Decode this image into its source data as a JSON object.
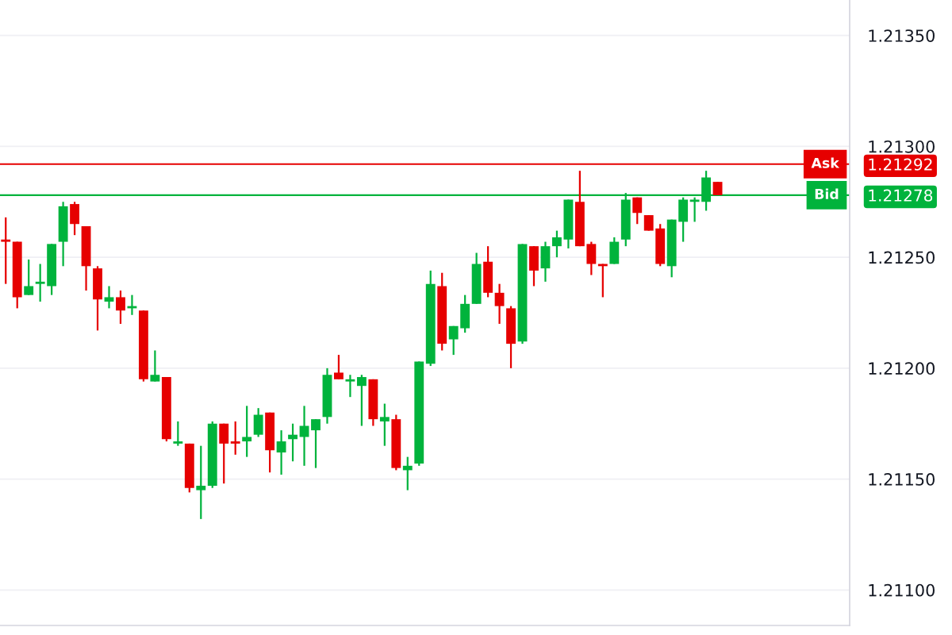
{
  "chart_data": {
    "type": "candlestick",
    "categories": [
      null,
      null,
      null,
      null,
      null,
      null,
      null,
      null,
      null,
      null,
      null,
      null,
      null,
      null,
      null,
      null,
      null,
      null,
      null,
      null,
      null,
      null,
      null,
      null,
      null,
      null,
      null,
      null,
      null,
      null,
      null,
      null,
      null,
      null,
      null,
      null,
      null,
      null,
      null,
      null,
      null,
      null,
      null,
      null,
      null,
      null,
      null,
      null,
      null,
      null,
      null,
      null,
      null,
      null,
      null,
      null,
      null,
      null,
      null,
      null,
      null,
      null,
      null,
      null,
      null,
      null,
      null,
      null,
      null,
      null,
      null,
      null,
      null,
      null
    ],
    "ohlc": [
      [
        1.21258,
        1.21268,
        1.21238,
        1.21257
      ],
      [
        1.21257,
        1.21257,
        1.21227,
        1.21232
      ],
      [
        1.21233,
        1.21249,
        1.21233,
        1.21237
      ],
      [
        1.21238,
        1.21247,
        1.2123,
        1.21239
      ],
      [
        1.21237,
        1.21256,
        1.21233,
        1.21256
      ],
      [
        1.21257,
        1.21275,
        1.21246,
        1.21273
      ],
      [
        1.21274,
        1.21275,
        1.2126,
        1.21265
      ],
      [
        1.21264,
        1.21264,
        1.21235,
        1.21246
      ],
      [
        1.21245,
        1.21246,
        1.21217,
        1.21231
      ],
      [
        1.2123,
        1.21237,
        1.21227,
        1.21232
      ],
      [
        1.21232,
        1.21235,
        1.2122,
        1.21226
      ],
      [
        1.21227,
        1.21233,
        1.21224,
        1.21228
      ],
      [
        1.21226,
        1.21226,
        1.21194,
        1.21195
      ],
      [
        1.21194,
        1.21208,
        1.21194,
        1.21197
      ],
      [
        1.21196,
        1.21196,
        1.21167,
        1.21168
      ],
      [
        1.21166,
        1.21176,
        1.21165,
        1.21167
      ],
      [
        1.21166,
        1.21166,
        1.21144,
        1.21146
      ],
      [
        1.21145,
        1.21165,
        1.21132,
        1.21147
      ],
      [
        1.21147,
        1.21176,
        1.21146,
        1.21175
      ],
      [
        1.21175,
        1.21175,
        1.21148,
        1.21166
      ],
      [
        1.21167,
        1.21176,
        1.21161,
        1.21166
      ],
      [
        1.21167,
        1.21183,
        1.2116,
        1.21169
      ],
      [
        1.2117,
        1.21182,
        1.21169,
        1.21179
      ],
      [
        1.2118,
        1.2118,
        1.21153,
        1.21163
      ],
      [
        1.21162,
        1.21172,
        1.21152,
        1.21167
      ],
      [
        1.21168,
        1.21175,
        1.21158,
        1.2117
      ],
      [
        1.21169,
        1.21183,
        1.21156,
        1.21174
      ],
      [
        1.21172,
        1.21177,
        1.21155,
        1.21177
      ],
      [
        1.21178,
        1.212,
        1.21175,
        1.21197
      ],
      [
        1.21198,
        1.21206,
        1.21195,
        1.21195
      ],
      [
        1.21194,
        1.21197,
        1.21187,
        1.21195
      ],
      [
        1.21192,
        1.21197,
        1.21174,
        1.21196
      ],
      [
        1.21195,
        1.21195,
        1.21174,
        1.21177
      ],
      [
        1.21176,
        1.21184,
        1.21165,
        1.21178
      ],
      [
        1.21177,
        1.21179,
        1.21154,
        1.21155
      ],
      [
        1.21154,
        1.2116,
        1.21145,
        1.21156
      ],
      [
        1.21157,
        1.21203,
        1.21156,
        1.21203
      ],
      [
        1.21202,
        1.21244,
        1.21201,
        1.21238
      ],
      [
        1.21237,
        1.21243,
        1.21208,
        1.21211
      ],
      [
        1.21213,
        1.21219,
        1.21206,
        1.21219
      ],
      [
        1.21218,
        1.21233,
        1.21216,
        1.21229
      ],
      [
        1.21229,
        1.21252,
        1.21229,
        1.21247
      ],
      [
        1.21248,
        1.21255,
        1.21232,
        1.21234
      ],
      [
        1.21234,
        1.21238,
        1.2122,
        1.21228
      ],
      [
        1.21227,
        1.21228,
        1.212,
        1.21211
      ],
      [
        1.21212,
        1.21256,
        1.21211,
        1.21256
      ],
      [
        1.21255,
        1.21255,
        1.21237,
        1.21244
      ],
      [
        1.21245,
        1.21257,
        1.21239,
        1.21255
      ],
      [
        1.21255,
        1.21262,
        1.2125,
        1.21259
      ],
      [
        1.21258,
        1.21276,
        1.21254,
        1.21276
      ],
      [
        1.21275,
        1.21289,
        1.21255,
        1.21255
      ],
      [
        1.21256,
        1.21257,
        1.21242,
        1.21247
      ],
      [
        1.21247,
        1.21247,
        1.21232,
        1.21246
      ],
      [
        1.21247,
        1.21259,
        1.21247,
        1.21257
      ],
      [
        1.21258,
        1.21279,
        1.21255,
        1.21276
      ],
      [
        1.21277,
        1.21277,
        1.21265,
        1.2127
      ],
      [
        1.21269,
        1.21269,
        1.21262,
        1.21262
      ],
      [
        1.21263,
        1.21265,
        1.21246,
        1.21247
      ],
      [
        1.21246,
        1.21267,
        1.21241,
        1.21267
      ],
      [
        1.21266,
        1.21277,
        1.21257,
        1.21276
      ],
      [
        1.21275,
        1.21277,
        1.21266,
        1.21276
      ],
      [
        1.21275,
        1.21289,
        1.21271,
        1.21286
      ],
      [
        1.21284,
        1.21284,
        1.21278,
        1.21278
      ],
      null,
      null,
      null,
      null,
      null,
      null,
      null,
      null,
      null,
      null,
      null
    ],
    "colors": [
      "#e60000",
      "#e60000",
      "#00b33c",
      "#00b33c",
      "#00b33c",
      "#00b33c",
      "#e60000",
      "#e60000",
      "#e60000",
      "#00b33c",
      "#e60000",
      "#00b33c",
      "#e60000",
      "#00b33c",
      "#e60000",
      "#00b33c",
      "#e60000",
      "#00b33c",
      "#00b33c",
      "#e60000",
      "#e60000",
      "#00b33c",
      "#00b33c",
      "#e60000",
      "#00b33c",
      "#00b33c",
      "#00b33c",
      "#00b33c",
      "#00b33c",
      "#e60000",
      "#00b33c",
      "#00b33c",
      "#e60000",
      "#00b33c",
      "#e60000",
      "#00b33c",
      "#00b33c",
      "#00b33c",
      "#e60000",
      "#00b33c",
      "#00b33c",
      "#00b33c",
      "#e60000",
      "#e60000",
      "#e60000",
      "#00b33c",
      "#e60000",
      "#00b33c",
      "#00b33c",
      "#00b33c",
      "#e60000",
      "#e60000",
      "#e60000",
      "#00b33c",
      "#00b33c",
      "#e60000",
      "#e60000",
      "#e60000",
      "#00b33c",
      "#00b33c",
      "#00b33c",
      "#00b33c",
      "#e60000",
      null,
      null,
      null,
      null,
      null,
      null,
      null,
      null,
      null,
      null,
      null
    ],
    "ylim": [
      1.21084,
      1.21366
    ],
    "yticks": [
      {
        "value": 1.211,
        "label": "1.21100"
      },
      {
        "value": 1.2115,
        "label": "1.21150"
      },
      {
        "value": 1.212,
        "label": "1.21200"
      },
      {
        "value": 1.2125,
        "label": "1.21250"
      },
      {
        "value": 1.21278,
        "label": "1.21278"
      },
      {
        "value": 1.21292,
        "label": "1.21292"
      },
      {
        "value": 1.213,
        "label": "1.21300"
      },
      {
        "value": 1.2135,
        "label": "1.21350"
      }
    ],
    "ref_lines": [
      {
        "axis": "y",
        "value": 1.21292,
        "label": "Ask",
        "color": "#e60000"
      },
      {
        "axis": "y",
        "value": 1.21278,
        "label": "Bid",
        "color": "#00b33c"
      }
    ],
    "grid": "y"
  }
}
